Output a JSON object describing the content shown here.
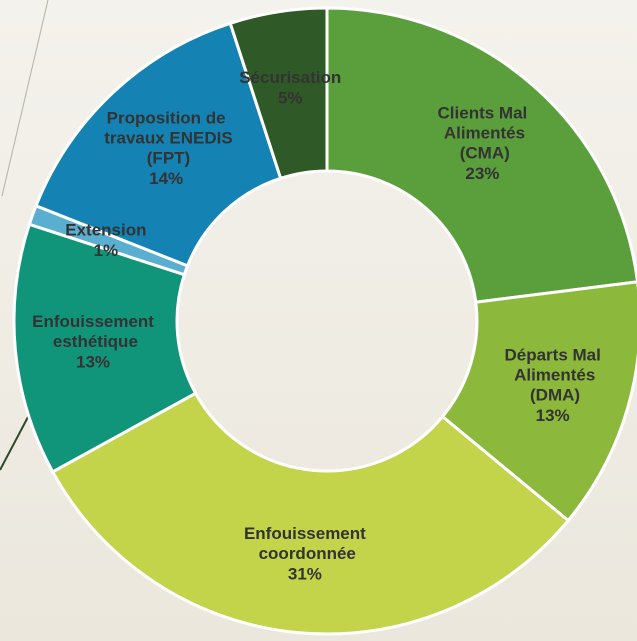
{
  "chart_data": {
    "type": "donut",
    "categories": [
      "Clients Mal Alimentés (CMA)",
      "Départs Mal Alimentés (DMA)",
      "Enfouissement coordonnée",
      "Enfouissement esthétique",
      "Extension",
      "Proposition de travaux ENEDIS (FPT)",
      "Sécurisation"
    ],
    "values": [
      23,
      13,
      31,
      13,
      1,
      14,
      5
    ],
    "value_labels": [
      "23%",
      "13%",
      "31%",
      "13%",
      "1%",
      "14%",
      "5%"
    ],
    "colors": [
      "#5a9f3b",
      "#8cb83b",
      "#c3d34a",
      "#11957a",
      "#5aaed0",
      "#1582b4",
      "#2f5a27"
    ]
  }
}
